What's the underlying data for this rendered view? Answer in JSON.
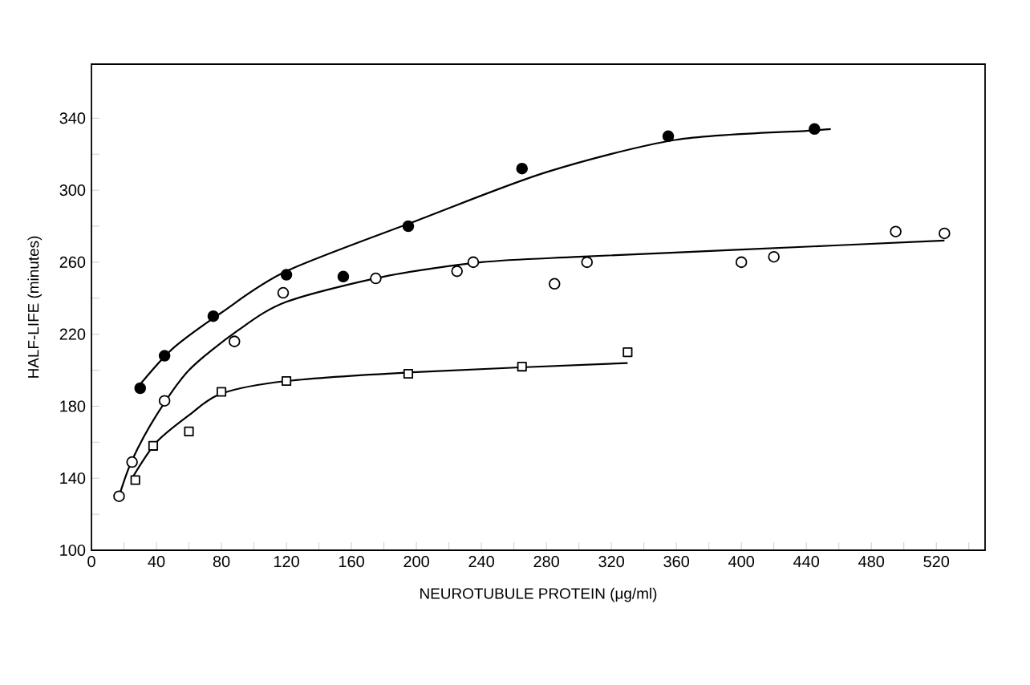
{
  "chart_data": {
    "type": "scatter",
    "xlabel": "NEUROTUBULE PROTEIN (μg/ml)",
    "ylabel": "HALF-LIFE (minutes)",
    "xlim": [
      0,
      550
    ],
    "ylim": [
      100,
      370
    ],
    "xticks": [
      0,
      {
        "value": 20,
        "label": null
      },
      40,
      {
        "value": 60,
        "label": null
      },
      80,
      {
        "value": 100,
        "label": null
      },
      120,
      {
        "value": 140,
        "label": null
      },
      160,
      {
        "value": 180,
        "label": null
      },
      200,
      {
        "value": 220,
        "label": null
      },
      240,
      {
        "value": 260,
        "label": null
      },
      280,
      {
        "value": 300,
        "label": null
      },
      320,
      {
        "value": 340,
        "label": null
      },
      360,
      {
        "value": 380,
        "label": null
      },
      400,
      {
        "value": 420,
        "label": null
      },
      440,
      {
        "value": 460,
        "label": null
      },
      480,
      {
        "value": 500,
        "label": null
      },
      520,
      {
        "value": 540,
        "label": null
      }
    ],
    "yticks": [
      100,
      {
        "value": 120,
        "label": null
      },
      140,
      {
        "value": 160,
        "label": null
      },
      180,
      {
        "value": 200,
        "label": null
      },
      220,
      {
        "value": 240,
        "label": null
      },
      260,
      {
        "value": 280,
        "label": null
      },
      300,
      {
        "value": 320,
        "label": null
      },
      340
    ],
    "grid": false,
    "series": [
      {
        "marker": "circle",
        "color": "#000000",
        "x": [
          30,
          45,
          75,
          120,
          155,
          195,
          265,
          355,
          445
        ],
        "values": [
          190,
          208,
          230,
          253,
          252,
          280,
          312,
          330,
          334
        ]
      },
      {
        "marker": "circle",
        "color": "#ffffff",
        "x": [
          17,
          25,
          45,
          88,
          118,
          175,
          225,
          235,
          285,
          305,
          400,
          420,
          495,
          525
        ],
        "values": [
          130,
          149,
          183,
          216,
          243,
          251,
          255,
          260,
          248,
          260,
          260,
          263,
          277,
          276
        ]
      },
      {
        "marker": "square",
        "color": "#ffffff",
        "x": [
          27,
          38,
          60,
          80,
          120,
          195,
          265,
          330
        ],
        "values": [
          139,
          158,
          166,
          188,
          194,
          198,
          202,
          210
        ]
      },
      {
        "type": "line",
        "marker": "none",
        "color": "#000000",
        "x": [
          28,
          50,
          80,
          120,
          200,
          280,
          360,
          440,
          455
        ],
        "values": [
          190,
          212,
          232,
          255,
          283,
          310,
          328,
          333,
          334
        ]
      },
      {
        "type": "line",
        "marker": "none",
        "color": "#000000",
        "x": [
          17,
          25,
          40,
          60,
          90,
          120,
          180,
          240,
          300,
          400,
          525
        ],
        "values": [
          130,
          150,
          175,
          200,
          222,
          238,
          252,
          260,
          263,
          267,
          272
        ]
      },
      {
        "type": "line",
        "marker": "none",
        "color": "#000000",
        "x": [
          25,
          40,
          60,
          80,
          120,
          200,
          330
        ],
        "values": [
          140,
          160,
          175,
          187,
          194,
          199,
          204
        ]
      }
    ]
  }
}
